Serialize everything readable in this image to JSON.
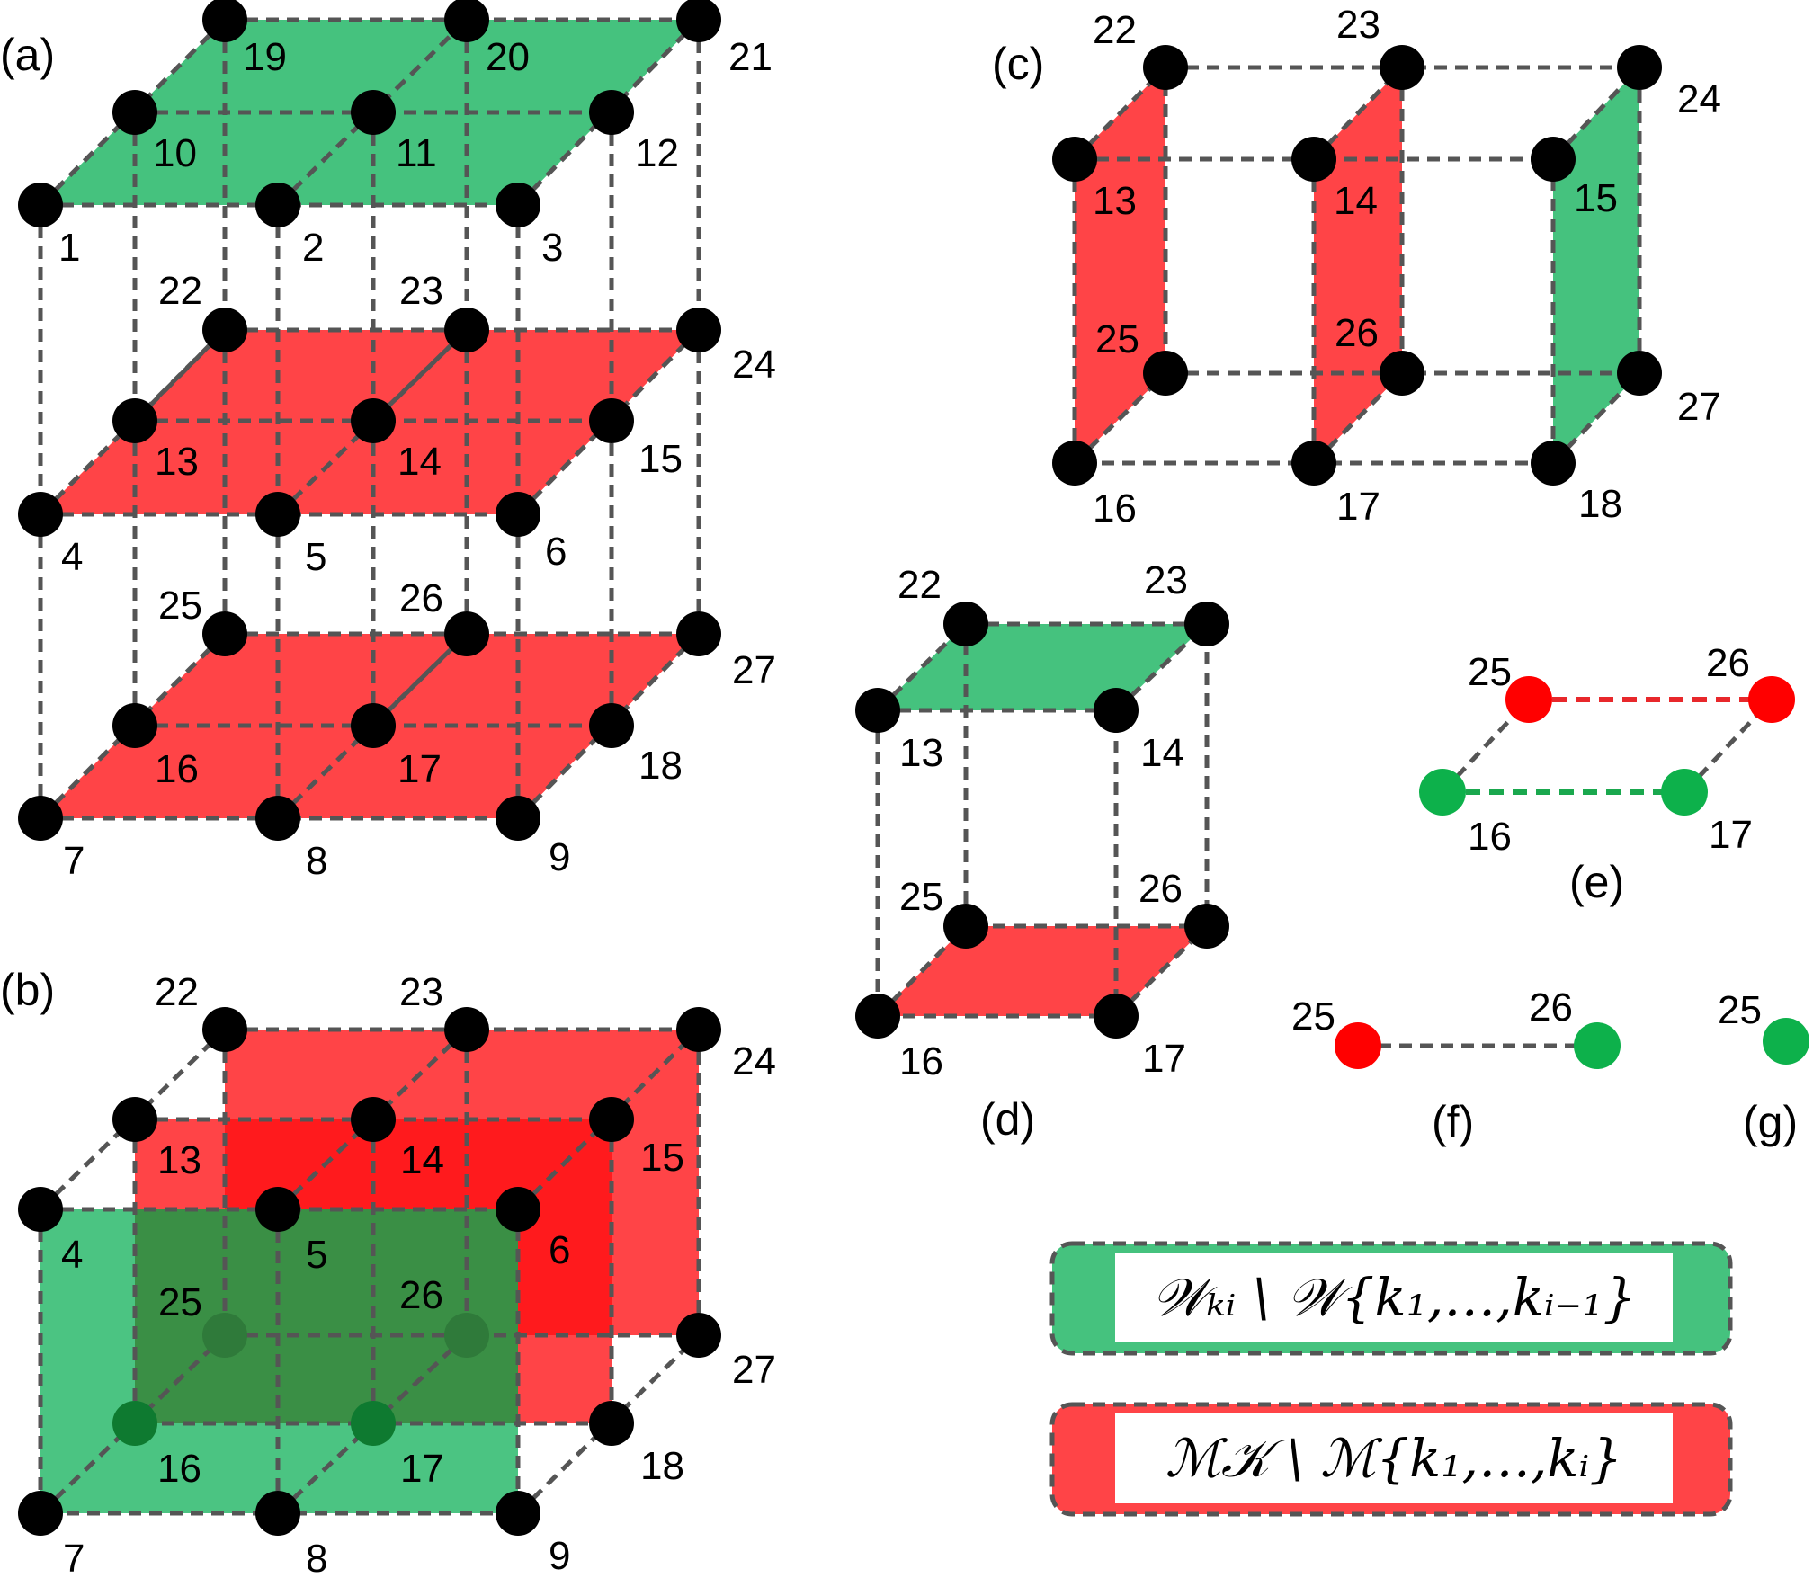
{
  "colors": {
    "green": "#45c27e",
    "red": "#ff4447",
    "red_deep": "#ff1a1d",
    "green_dark": "#3a8f45",
    "edge": "#555555",
    "node": "#000000",
    "node_green": "#0db14b",
    "node_red": "#ff0000",
    "edge_red": "#e8282b",
    "edge_green": "#1aa84e"
  },
  "panels": {
    "a": "(a)",
    "b": "(b)",
    "c": "(c)",
    "d": "(d)",
    "e": "(e)",
    "f": "(f)",
    "g": "(g)"
  },
  "panel_a": {
    "labels": [
      "1",
      "2",
      "3",
      "4",
      "5",
      "6",
      "7",
      "8",
      "9",
      "10",
      "11",
      "12",
      "13",
      "14",
      "15",
      "16",
      "17",
      "18",
      "19",
      "20",
      "21",
      "22",
      "23",
      "24",
      "25",
      "26",
      "27"
    ]
  },
  "panel_b": {
    "labels": [
      "4",
      "5",
      "6",
      "7",
      "8",
      "9",
      "13",
      "14",
      "15",
      "16",
      "17",
      "18",
      "22",
      "23",
      "24",
      "25",
      "26",
      "27"
    ]
  },
  "panel_c": {
    "labels": [
      "13",
      "14",
      "15",
      "16",
      "17",
      "18",
      "22",
      "23",
      "24",
      "25",
      "26",
      "27"
    ]
  },
  "panel_d": {
    "labels": [
      "13",
      "14",
      "16",
      "17",
      "22",
      "23",
      "25",
      "26"
    ]
  },
  "panel_e": {
    "labels": [
      "25",
      "26",
      "16",
      "17"
    ]
  },
  "panel_f": {
    "labels": [
      "25",
      "26"
    ]
  },
  "panel_g": {
    "labels": [
      "25"
    ]
  },
  "legend": {
    "green_label": "𝒲ₖᵢ \\ 𝒲{k₁,…,kᵢ₋₁}",
    "red_label": "ℳ𝒦 \\ ℳ{k₁,…,kᵢ}",
    "green_icon": "green-swatch-icon",
    "red_icon": "red-swatch-icon"
  }
}
